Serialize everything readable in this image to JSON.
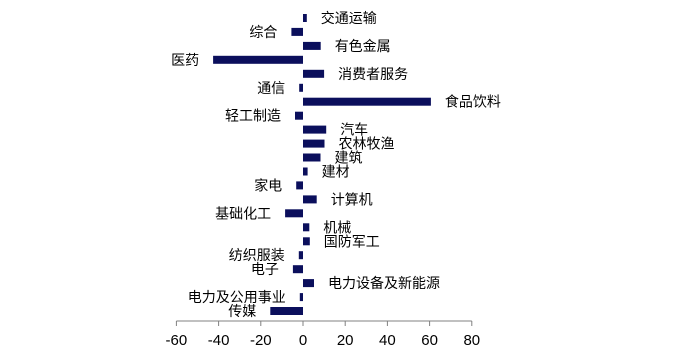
{
  "chart_data": {
    "type": "bar",
    "orientation": "horizontal",
    "bar_color": "#0b0f5c",
    "axis_color": "#808080",
    "grid": false,
    "legend": "none",
    "xlim": [
      -60,
      80
    ],
    "xticks": [
      -60,
      -40,
      -20,
      0,
      20,
      40,
      60,
      80
    ],
    "xtick_labels": [
      "-60",
      "-40",
      "-20",
      "0",
      "20",
      "40",
      "60",
      "80"
    ],
    "categories": [
      "交通运输",
      "综合",
      "有色金属",
      "医药",
      "消费者服务",
      "通信",
      "食品饮料",
      "轻工制造",
      "汽车",
      "农林牧渔",
      "建筑",
      "建材",
      "家电",
      "计算机",
      "基础化工",
      "机械",
      "国防军工",
      "纺织服装",
      "电子",
      "电力设备及新能源",
      "电力及公用事业",
      "传媒"
    ],
    "label_side": [
      "right",
      "left",
      "right",
      "left",
      "right",
      "left",
      "right",
      "left",
      "right",
      "right",
      "right",
      "right",
      "left",
      "right",
      "left",
      "right",
      "right",
      "left",
      "left",
      "right",
      "left",
      "left"
    ],
    "values": [
      1.8,
      -5.5,
      8.4,
      -42.6,
      10.0,
      -1.8,
      60.6,
      -3.8,
      11.0,
      10.2,
      8.3,
      2.2,
      -3.2,
      6.5,
      -8.5,
      3.0,
      3.2,
      -2.0,
      -4.8,
      5.2,
      -1.5,
      -15.5
    ]
  }
}
